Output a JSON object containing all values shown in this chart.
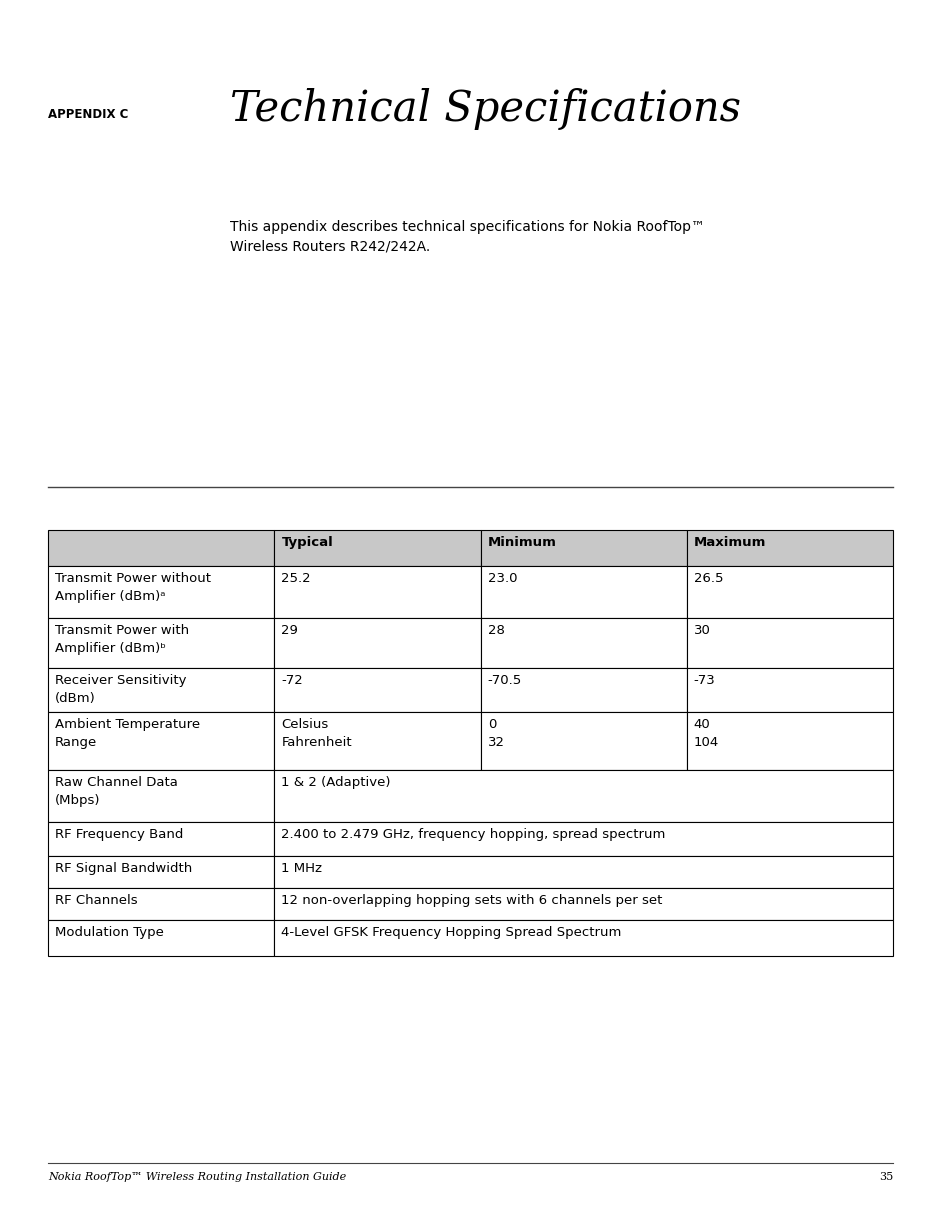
{
  "appendix_label": "APPENDIX C",
  "title": "Technical Specifications",
  "intro_text_line1": "This appendix describes technical specifications for Nokia RoofTop™",
  "intro_text_line2": "Wireless Routers R242/242A.",
  "footer_text": "Nokia RoofTop™ Wireless Routing Installation Guide",
  "footer_page": "35",
  "table_header": [
    "",
    "Typical",
    "Minimum",
    "Maximum"
  ],
  "rows": [
    {
      "label": "Transmit Power without\nAmplifier (dBm)ᵃ",
      "typical": "25.2",
      "minimum": "23.0",
      "maximum": "26.5",
      "span": false,
      "two_line": false
    },
    {
      "label": "Transmit Power with\nAmplifier (dBm)ᵇ",
      "typical": "29",
      "minimum": "28",
      "maximum": "30",
      "span": false,
      "two_line": false
    },
    {
      "label": "Receiver Sensitivity\n(dBm)",
      "typical": "-72",
      "minimum": "-70.5",
      "maximum": "-73",
      "span": false,
      "two_line": false
    },
    {
      "label": "Ambient Temperature\nRange",
      "typical": "Celsius\nFahrenheit",
      "minimum": "0\n32",
      "maximum": "40\n104",
      "span": false,
      "two_line": true
    },
    {
      "label": "Raw Channel Data\n(Mbps)",
      "typical": "1 & 2 (Adaptive)",
      "minimum": "",
      "maximum": "",
      "span": true,
      "two_line": false
    },
    {
      "label": "RF Frequency Band",
      "typical": "2.400 to 2.479 GHz, frequency hopping, spread spectrum",
      "minimum": "",
      "maximum": "",
      "span": true,
      "two_line": false
    },
    {
      "label": "RF Signal Bandwidth",
      "typical": "1 MHz",
      "minimum": "",
      "maximum": "",
      "span": true,
      "two_line": false
    },
    {
      "label": "RF Channels",
      "typical": "12 non-overlapping hopping sets with 6 channels per set",
      "minimum": "",
      "maximum": "",
      "span": true,
      "two_line": false
    },
    {
      "label": "Modulation Type",
      "typical": "4-Level GFSK Frequency Hopping Spread Spectrum",
      "minimum": "",
      "maximum": "",
      "span": true,
      "two_line": false
    }
  ],
  "bg_color": "#ffffff",
  "text_color": "#000000",
  "header_bg": "#c8c8c8",
  "cell_bg": "#ffffff",
  "border_color": "#000000"
}
